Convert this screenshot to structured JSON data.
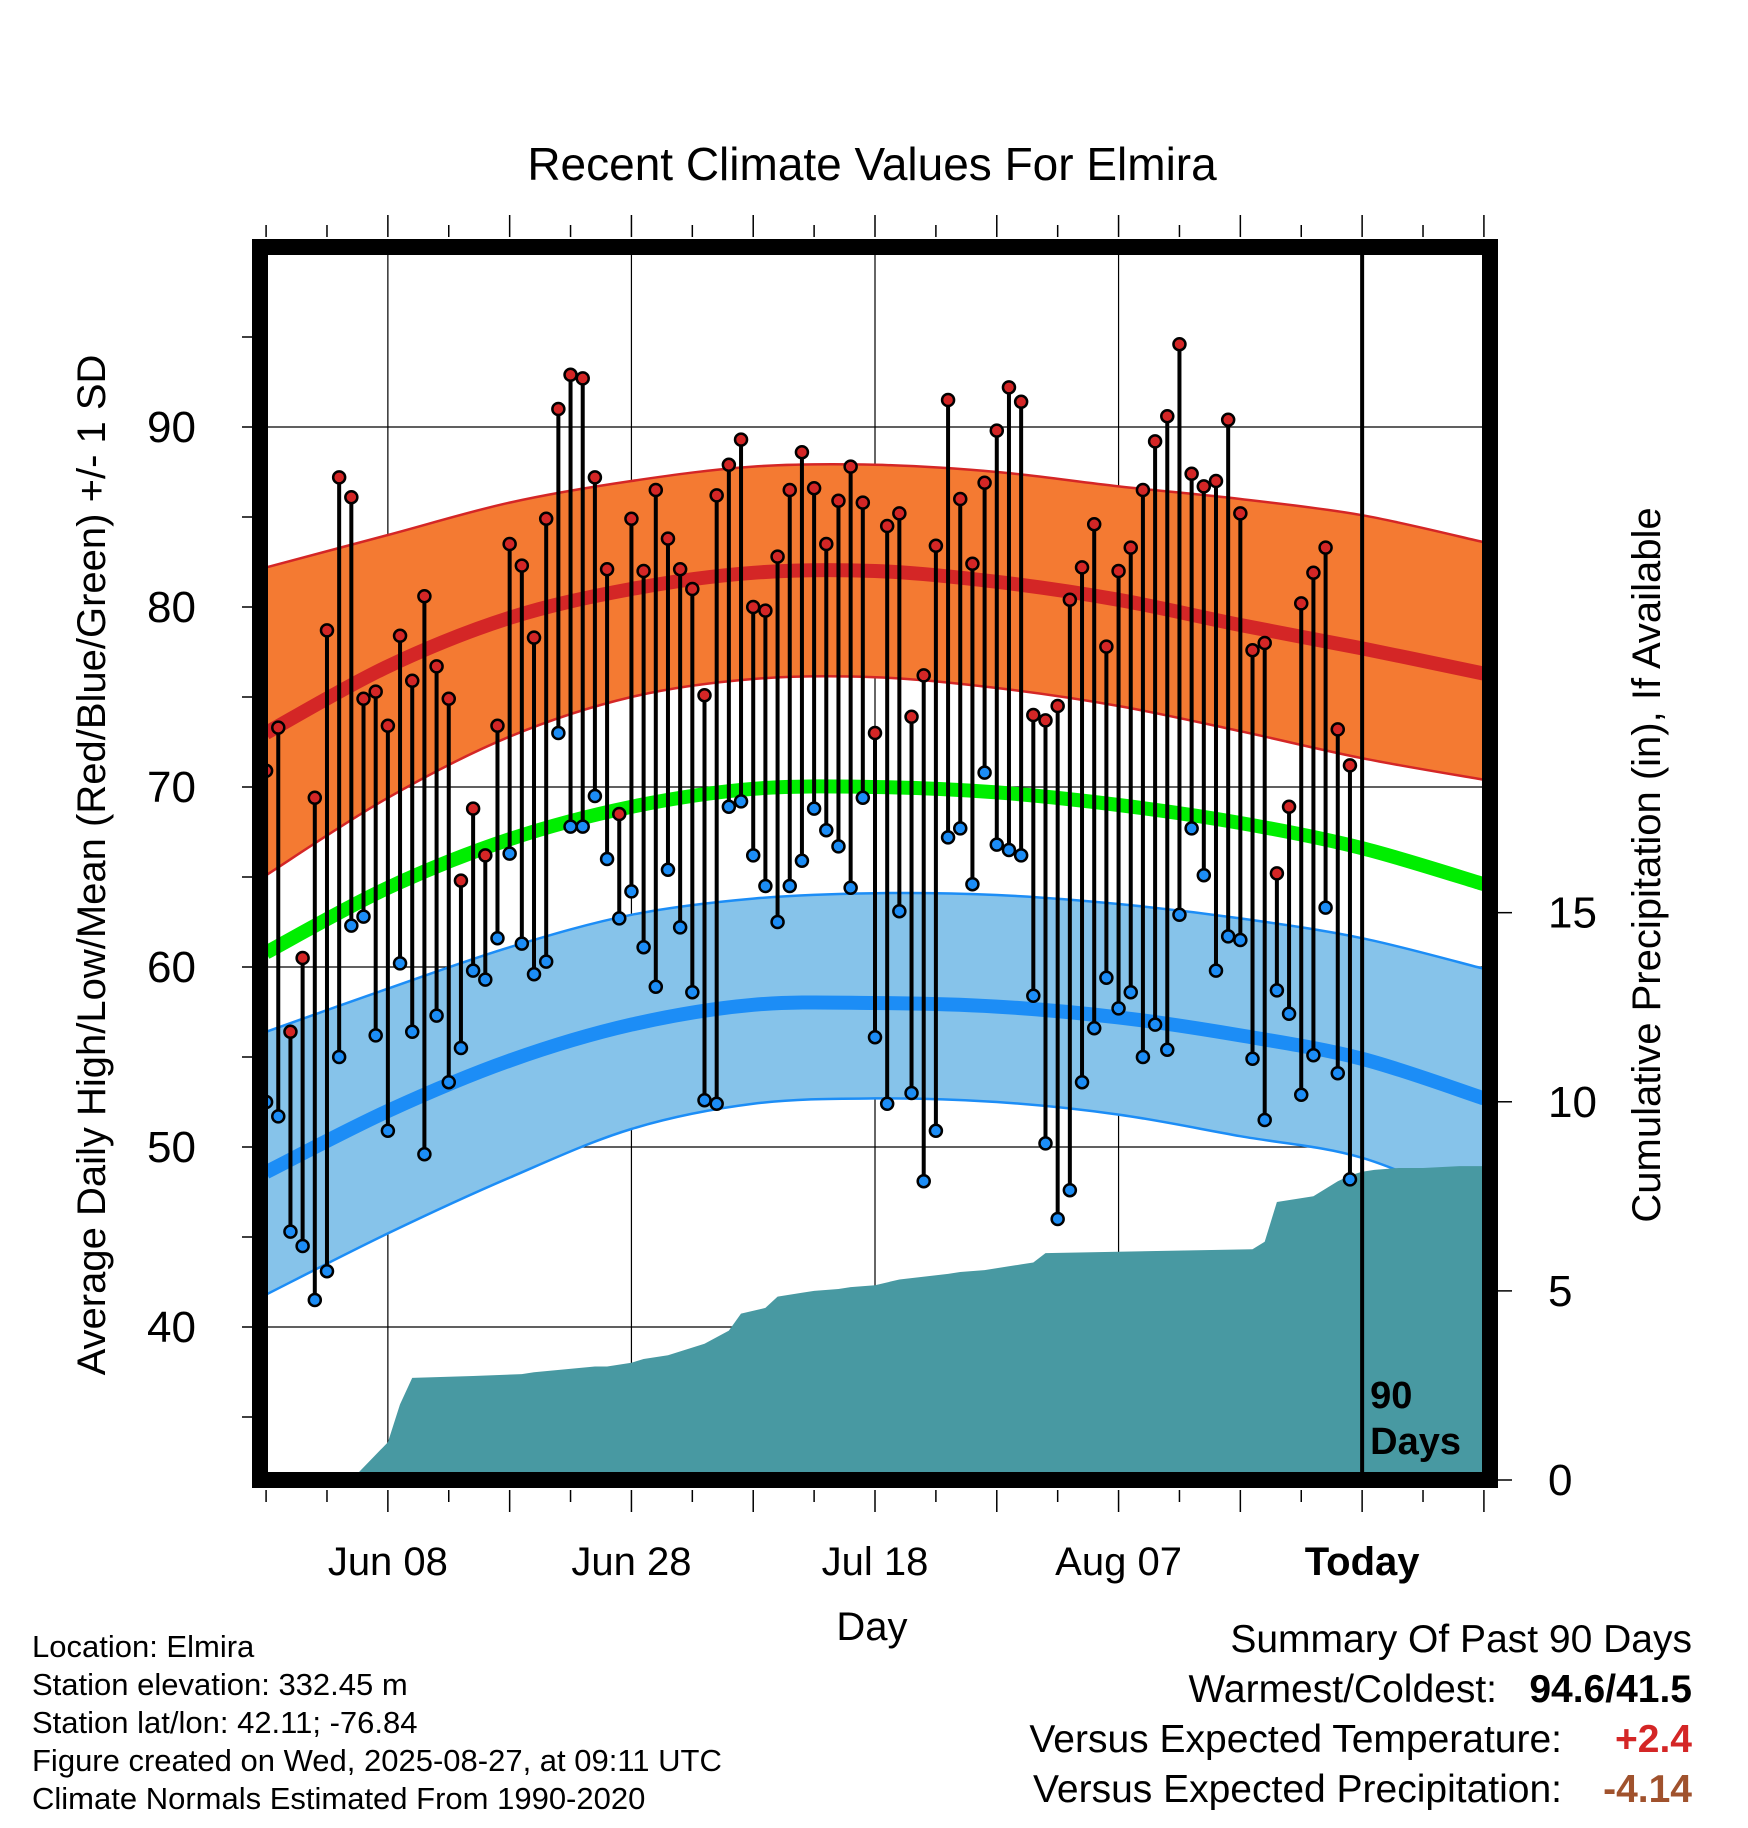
{
  "chart_data": {
    "type": "line",
    "title": "Recent Climate Values For Elmira",
    "xlabel": "Day",
    "ylabel": "Average Daily High/Low/Mean (Red/Blue/Green) +/- 1 SD",
    "y2label": "Cumulative Precipitation (in), If Available",
    "x_ticks": [
      "Jun 08",
      "Jun 28",
      "Jul 18",
      "Aug 07",
      "Today"
    ],
    "x_tick_days": [
      10,
      30,
      50,
      70,
      90
    ],
    "xlim": [
      -0.5,
      100.5
    ],
    "ylim": [
      31.5,
      100
    ],
    "y_ticks": [
      40,
      50,
      60,
      70,
      80,
      90
    ],
    "y2lim": [
      0,
      32.6
    ],
    "y2_ticks": [
      0,
      5,
      10,
      15
    ],
    "today_label": "90\nDays",
    "today_day": 90,
    "grid": true,
    "colors": {
      "high_band": "#f47a32",
      "high_mean": "#d42626",
      "low_band": "#86c3ea",
      "low_mean": "#1c8df6",
      "mean": "#00ee00",
      "precip": "#4899a2",
      "high_point": "#d42626",
      "low_point": "#1c8df6"
    },
    "normals": {
      "days": [
        0,
        10,
        20,
        30,
        40,
        50,
        60,
        70,
        80,
        90,
        100
      ],
      "high_mean": [
        73,
        76.7,
        79.4,
        81.0,
        81.9,
        82.0,
        81.4,
        80.4,
        79.0,
        77.7,
        76.3
      ],
      "high_upper": [
        82.2,
        84.0,
        85.8,
        87.0,
        87.8,
        87.9,
        87.5,
        86.7,
        86.0,
        85.1,
        83.6
      ],
      "high_lower": [
        65.1,
        69.4,
        72.8,
        75.0,
        76.0,
        76.1,
        75.5,
        74.5,
        73.1,
        71.6,
        70.4
      ],
      "low_mean": [
        48.6,
        52.0,
        54.8,
        56.8,
        57.9,
        58.0,
        57.8,
        57.2,
        56.2,
        54.9,
        52.7
      ],
      "low_upper": [
        56.4,
        58.8,
        61.1,
        62.9,
        63.8,
        64.1,
        64.0,
        63.5,
        62.7,
        61.6,
        59.9
      ],
      "low_lower": [
        41.8,
        45.2,
        48.3,
        51.0,
        52.4,
        52.7,
        52.5,
        51.8,
        50.6,
        49.4,
        46.6
      ],
      "mean": [
        60.8,
        64.4,
        67.1,
        68.9,
        69.9,
        70.0,
        69.7,
        69.0,
        68.0,
        66.6,
        64.6
      ]
    },
    "series": [
      {
        "name": "High",
        "days": [
          0,
          1,
          2,
          3,
          4,
          5,
          6,
          7,
          8,
          9,
          10,
          11,
          12,
          13,
          14,
          15,
          16,
          17,
          18,
          19,
          20,
          21,
          22,
          23,
          24,
          25,
          26,
          27,
          28,
          29,
          30,
          31,
          32,
          33,
          34,
          35,
          36,
          37,
          38,
          39,
          40,
          41,
          42,
          43,
          44,
          45,
          46,
          47,
          48,
          49,
          50,
          51,
          52,
          53,
          54,
          55,
          56,
          57,
          58,
          59,
          60,
          61,
          62,
          63,
          64,
          65,
          66,
          67,
          68,
          69,
          70,
          71,
          72,
          73,
          74,
          75,
          76,
          77,
          78,
          79,
          80,
          81,
          82,
          83,
          84,
          85,
          86,
          87,
          88,
          89
        ],
        "values": [
          70.9,
          73.3,
          56.4,
          60.5,
          69.4,
          78.7,
          87.2,
          86.1,
          74.9,
          75.3,
          73.4,
          78.4,
          75.9,
          80.6,
          76.7,
          74.9,
          64.8,
          68.8,
          66.2,
          73.4,
          83.5,
          82.3,
          78.3,
          84.9,
          91.0,
          92.9,
          92.7,
          87.2,
          82.1,
          68.5,
          84.9,
          82.0,
          86.5,
          83.8,
          82.1,
          81.0,
          75.1,
          86.2,
          87.9,
          89.3,
          80.0,
          79.8,
          82.8,
          86.5,
          88.6,
          86.6,
          83.5,
          85.9,
          87.8,
          85.8,
          73.0,
          84.5,
          85.2,
          73.9,
          76.2,
          83.4,
          91.5,
          86.0,
          82.4,
          86.9,
          89.8,
          92.2,
          91.4,
          74.0,
          73.7,
          74.5,
          80.4,
          82.2,
          84.6,
          77.8,
          82.0,
          83.3,
          86.5,
          89.2,
          90.6,
          94.6,
          87.4,
          86.7,
          87.0,
          90.4,
          85.2,
          77.6,
          78.0,
          65.2,
          68.9,
          80.2,
          81.9,
          83.3,
          73.2,
          71.2
        ]
      },
      {
        "name": "Low",
        "days": [
          0,
          1,
          2,
          3,
          4,
          5,
          6,
          7,
          8,
          9,
          10,
          11,
          12,
          13,
          14,
          15,
          16,
          17,
          18,
          19,
          20,
          21,
          22,
          23,
          24,
          25,
          26,
          27,
          28,
          29,
          30,
          31,
          32,
          33,
          34,
          35,
          36,
          37,
          38,
          39,
          40,
          41,
          42,
          43,
          44,
          45,
          46,
          47,
          48,
          49,
          50,
          51,
          52,
          53,
          54,
          55,
          56,
          57,
          58,
          59,
          60,
          61,
          62,
          63,
          64,
          65,
          66,
          67,
          68,
          69,
          70,
          71,
          72,
          73,
          74,
          75,
          76,
          77,
          78,
          79,
          80,
          81,
          82,
          83,
          84,
          85,
          86,
          87,
          88,
          89
        ],
        "values": [
          52.5,
          51.7,
          45.3,
          44.5,
          41.5,
          43.1,
          55.0,
          62.3,
          62.8,
          56.2,
          50.9,
          60.2,
          56.4,
          49.6,
          57.3,
          53.6,
          55.5,
          59.8,
          59.3,
          61.6,
          66.3,
          61.3,
          59.6,
          60.3,
          73.0,
          67.8,
          67.8,
          69.5,
          66.0,
          62.7,
          64.2,
          61.1,
          58.9,
          65.4,
          62.2,
          58.6,
          52.6,
          52.4,
          68.9,
          69.2,
          66.2,
          64.5,
          62.5,
          64.5,
          65.9,
          68.8,
          67.6,
          66.7,
          64.4,
          69.4,
          56.1,
          52.4,
          63.1,
          53.0,
          48.1,
          50.9,
          67.2,
          67.7,
          64.6,
          70.8,
          66.8,
          66.5,
          66.2,
          58.4,
          50.2,
          46.0,
          47.6,
          53.6,
          56.6,
          59.4,
          57.7,
          58.6,
          55.0,
          56.8,
          55.4,
          62.9,
          67.7,
          65.1,
          59.8,
          61.7,
          61.5,
          54.9,
          51.5,
          58.7,
          57.4,
          52.9,
          55.1,
          63.3,
          54.1,
          48.2
        ]
      }
    ],
    "precip": {
      "days": [
        0,
        7,
        10,
        11,
        12,
        17,
        21,
        22,
        27,
        28,
        30,
        31,
        33,
        36,
        38,
        39,
        41,
        42,
        44,
        45,
        47,
        48,
        50,
        52,
        56,
        57,
        59,
        61,
        62,
        63,
        64,
        81,
        82,
        83,
        86,
        87,
        88,
        89,
        90,
        91,
        93,
        95,
        98,
        100
      ],
      "values": [
        0,
        0,
        1,
        2,
        2.7,
        2.75,
        2.8,
        2.85,
        3.0,
        3.0,
        3.1,
        3.2,
        3.3,
        3.6,
        3.95,
        4.4,
        4.55,
        4.85,
        4.95,
        5.0,
        5.05,
        5.1,
        5.15,
        5.3,
        5.45,
        5.5,
        5.55,
        5.65,
        5.7,
        5.75,
        6.0,
        6.1,
        6.3,
        7.35,
        7.5,
        7.7,
        7.9,
        8.05,
        8.15,
        8.2,
        8.25,
        8.25,
        8.3,
        8.3
      ]
    }
  },
  "info": {
    "location": "Location: Elmira",
    "elevation": "Station elevation: 332.45 m",
    "latlon": "Station lat/lon: 42.11; -76.84",
    "created": "Figure created on Wed, 2025-08-27, at 09:11 UTC",
    "normals": "Climate Normals Estimated From 1990-2020"
  },
  "summary": {
    "heading": "Summary Of Past 90 Days",
    "warmest_coldest_label": "Warmest/Coldest:",
    "warmest_coldest_value": "94.6/41.5",
    "temp_label": "Versus Expected Temperature:",
    "temp_value": "+2.4",
    "temp_color": "#d42626",
    "precip_label": "Versus Expected Precipitation:",
    "precip_value": "-4.14",
    "precip_color": "#a0522d"
  }
}
